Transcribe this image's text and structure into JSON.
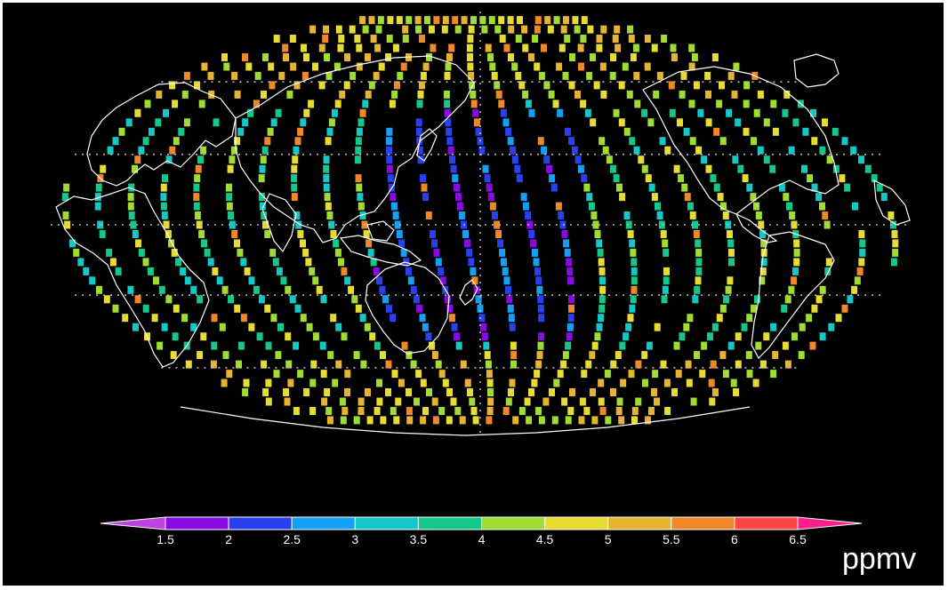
{
  "figure": {
    "background": "#000000",
    "border_color": "#ffffff",
    "projection": "hammer-aitoff",
    "graticule": "dotted",
    "coastline_color": "#ffffff"
  },
  "colorbar": {
    "unit": "ppmv",
    "ticks": [
      "1.5",
      "2",
      "2.5",
      "3",
      "3.5",
      "4",
      "4.5",
      "5",
      "5.5",
      "6",
      "6.5"
    ],
    "under_color": "#c040e0",
    "over_color": "#ff2090",
    "bins": [
      {
        "from": 1.5,
        "to": 2.0,
        "color": "#8a0ae6"
      },
      {
        "from": 2.0,
        "to": 2.5,
        "color": "#2840f0"
      },
      {
        "from": 2.5,
        "to": 3.0,
        "color": "#14a0f5"
      },
      {
        "from": 3.0,
        "to": 3.5,
        "color": "#14c8c8"
      },
      {
        "from": 3.5,
        "to": 4.0,
        "color": "#14c88c"
      },
      {
        "from": 4.0,
        "to": 4.5,
        "color": "#a0dc32"
      },
      {
        "from": 4.5,
        "to": 5.0,
        "color": "#e6dc32"
      },
      {
        "from": 5.0,
        "to": 5.5,
        "color": "#e6b432"
      },
      {
        "from": 5.5,
        "to": 6.0,
        "color": "#f0882a"
      },
      {
        "from": 6.0,
        "to": 6.5,
        "color": "#ff4646"
      }
    ]
  }
}
